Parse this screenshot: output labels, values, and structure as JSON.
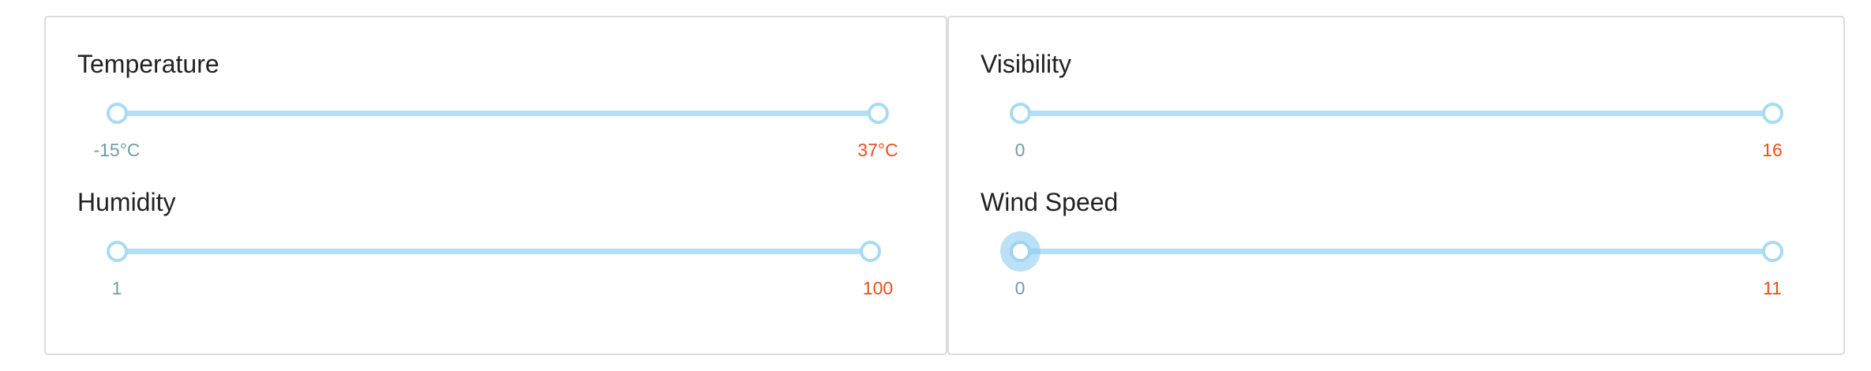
{
  "colors": {
    "track": "#b3e0f5",
    "handle_border": "#a8dbf3",
    "min_label": "#6e9fa3",
    "max_label": "#e8501c",
    "panel_border": "#dcdcdc"
  },
  "filters": {
    "temperature": {
      "label": "Temperature",
      "min_label": "-15°C",
      "max_label": "37°C"
    },
    "humidity": {
      "label": "Humidity",
      "min_label": "1",
      "max_label": "100"
    },
    "visibility": {
      "label": "Visibility",
      "min_label": "0",
      "max_label": "16"
    },
    "wind_speed": {
      "label": "Wind Speed",
      "min_label": "0",
      "max_label": "11",
      "focused_handle": "min"
    }
  }
}
